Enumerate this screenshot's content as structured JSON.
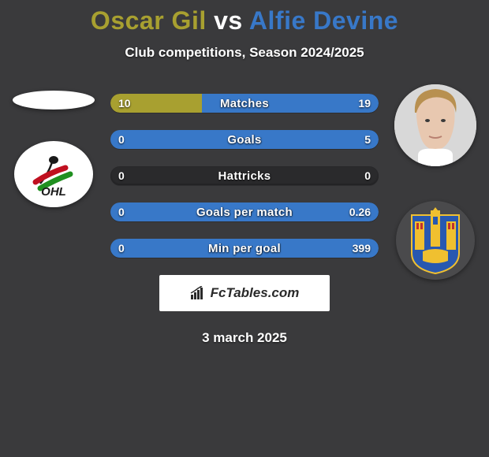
{
  "title": {
    "player1": "Oscar Gil",
    "vs": "vs",
    "player2": "Alfie Devine",
    "color1": "#a8a030",
    "color_vs": "#ffffff",
    "color2": "#3878c8"
  },
  "subtitle": "Club competitions, Season 2024/2025",
  "bars": {
    "track_color": "#2a2a2c",
    "left_color": "#a8a030",
    "right_color": "#3878c8",
    "rows": [
      {
        "label": "Matches",
        "left_val": "10",
        "right_val": "19",
        "left_pct": 34,
        "right_pct": 66
      },
      {
        "label": "Goals",
        "left_val": "0",
        "right_val": "5",
        "left_pct": 0,
        "right_pct": 100
      },
      {
        "label": "Hattricks",
        "left_val": "0",
        "right_val": "0",
        "left_pct": 0,
        "right_pct": 0
      },
      {
        "label": "Goals per match",
        "left_val": "0",
        "right_val": "0.26",
        "left_pct": 0,
        "right_pct": 100
      },
      {
        "label": "Min per goal",
        "left_val": "0",
        "right_val": "399",
        "left_pct": 0,
        "right_pct": 100
      }
    ]
  },
  "site": "FcTables.com",
  "date": "3 march 2025",
  "left_club_label": "OHL"
}
